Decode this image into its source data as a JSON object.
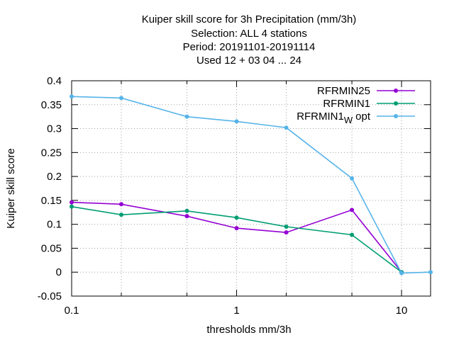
{
  "chart_data": {
    "type": "line",
    "title_lines": [
      "Kuiper skill score  for 3h Precipitation (mm/3h)",
      "Selection: ALL      4 stations",
      "Period: 20191101-20191114",
      "Used  12 + 03 04 ... 24"
    ],
    "xlabel": "thresholds mm/3h",
    "ylabel": "Kuiper skill score",
    "x_scale": "log",
    "xlim": [
      0.1,
      15
    ],
    "ylim": [
      -0.05,
      0.4
    ],
    "x_tick_labels": [
      {
        "value": 0.1,
        "label": "0.1"
      },
      {
        "value": 1,
        "label": "1"
      },
      {
        "value": 10,
        "label": "10"
      }
    ],
    "x_minor_ticks": [
      0.2,
      0.5,
      2,
      5
    ],
    "y_tick_labels": [
      {
        "value": 0.4,
        "label": "0.4"
      },
      {
        "value": 0.35,
        "label": "0.35"
      },
      {
        "value": 0.3,
        "label": "0.3"
      },
      {
        "value": 0.25,
        "label": "0.25"
      },
      {
        "value": 0.2,
        "label": "0.2"
      },
      {
        "value": 0.15,
        "label": "0.15"
      },
      {
        "value": 0.1,
        "label": "0.1"
      },
      {
        "value": 0.05,
        "label": "0.05"
      },
      {
        "value": 0,
        "label": "0"
      },
      {
        "value": -0.05,
        "label": "-0.05"
      }
    ],
    "grid": true,
    "legend_position": "top-right",
    "series": [
      {
        "name": "RFRMIN25",
        "color": "#9400d3",
        "x": [
          0.1,
          0.2,
          0.5,
          1,
          2,
          5,
          10
        ],
        "y": [
          0.146,
          0.142,
          0.117,
          0.092,
          0.083,
          0.13,
          0.0
        ]
      },
      {
        "name": "RFRMIN1",
        "color": "#009e73",
        "x": [
          0.1,
          0.2,
          0.5,
          1,
          2,
          5,
          10
        ],
        "y": [
          0.137,
          0.12,
          0.128,
          0.114,
          0.095,
          0.078,
          0.0
        ]
      },
      {
        "name_main": "RFRMIN1",
        "name_sub": "W",
        "name_suffix": "opt",
        "color": "#56b4e9",
        "x": [
          0.1,
          0.2,
          0.5,
          1,
          2,
          5,
          10,
          15
        ],
        "y": [
          0.367,
          0.364,
          0.325,
          0.315,
          0.302,
          0.196,
          -0.002,
          0.0
        ]
      }
    ]
  }
}
